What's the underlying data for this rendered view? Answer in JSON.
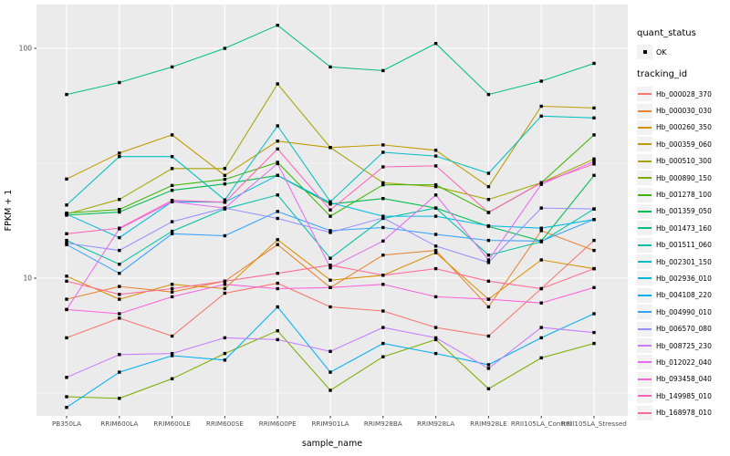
{
  "axes": {
    "x_title": "sample_name",
    "y_title": "FPKM + 1",
    "y_tick_labels": [
      "100",
      "10"
    ]
  },
  "legend": {
    "quant_status_title": "quant_status",
    "quant_status_items": [
      {
        "label": "OK",
        "symbol": "black-square-point"
      }
    ],
    "tracking_id_title": "tracking_id"
  },
  "colors": {
    "panel_background": "#EBEBEB",
    "gridline": "#FFFFFF",
    "axis_text": "#4D4D4D",
    "tick_mark": "#333333",
    "point": "#000000",
    "legend_key_background": "#F2F2F2"
  },
  "chart_data": {
    "type": "line",
    "title": "",
    "xlabel": "sample_name",
    "ylabel": "FPKM + 1",
    "y_scale": "log10",
    "ylim": [
      2.5,
      148
    ],
    "y_major_ticks": [
      10,
      100
    ],
    "y_minor_gridlines": [
      3.162,
      31.62
    ],
    "grid": true,
    "legend_position": "right",
    "point_marker": "filled-black-square",
    "quant_status": "OK",
    "categories": [
      "PB350LA",
      "RRIM600LA",
      "RRIM600LE",
      "RRIM600SE",
      "RRIM600PE",
      "RRIM901LA",
      "RRIM928BA",
      "RRIM928LA",
      "RRIM928LE",
      "RRII105LA_Control",
      "RRII105LA_Stressed"
    ],
    "series": [
      {
        "name": "Hb_000028_370",
        "color": "#F8766D",
        "values": [
          5.5,
          6.7,
          5.6,
          8.6,
          9.5,
          7.5,
          7.2,
          6.1,
          5.6,
          9.0,
          14.6
        ]
      },
      {
        "name": "Hb_000030_030",
        "color": "#EA8331",
        "values": [
          8.1,
          9.2,
          8.7,
          9.7,
          14.0,
          9.1,
          12.6,
          13.2,
          7.5,
          16.1,
          13.2
        ]
      },
      {
        "name": "Hb_000260_350",
        "color": "#D89000",
        "values": [
          10.2,
          8.1,
          9.4,
          9.0,
          14.7,
          9.8,
          10.3,
          12.9,
          8.1,
          12.0,
          11.0
        ]
      },
      {
        "name": "Hb_000359_060",
        "color": "#C09B00",
        "values": [
          27,
          35,
          42,
          28,
          39.5,
          37,
          38,
          36,
          25,
          56,
          55
        ]
      },
      {
        "name": "Hb_000510_300",
        "color": "#A3A500",
        "values": [
          19,
          22,
          30,
          30,
          70,
          37,
          26,
          25,
          22,
          26,
          33
        ]
      },
      {
        "name": "Hb_000890_150",
        "color": "#7CAE00",
        "values": [
          3.05,
          3.0,
          3.65,
          4.7,
          5.9,
          3.25,
          4.55,
          5.4,
          3.3,
          4.5,
          5.2
        ]
      },
      {
        "name": "Hb_001278_100",
        "color": "#39B600",
        "values": [
          19.2,
          19.9,
          25.3,
          26.9,
          31.9,
          18.6,
          25.5,
          25.5,
          19.3,
          26,
          42
        ]
      },
      {
        "name": "Hb_001359_050",
        "color": "#00BB4E",
        "values": [
          18.8,
          19.4,
          24.1,
          25.7,
          28,
          21.0,
          22.2,
          20.2,
          16.8,
          14.5,
          28
        ]
      },
      {
        "name": "Hb_001473_160",
        "color": "#00BF7D",
        "values": [
          63,
          71,
          83,
          100,
          126,
          83,
          80,
          105,
          63,
          72,
          86
        ]
      },
      {
        "name": "Hb_001511_060",
        "color": "#00C1A3",
        "values": [
          14.6,
          11.5,
          16,
          20,
          23,
          12.2,
          18.2,
          20.2,
          12.6,
          14.4,
          20
        ]
      },
      {
        "name": "Hb_002301_150",
        "color": "#00BFC4",
        "values": [
          20.8,
          33.8,
          33.8,
          21.9,
          46,
          21.5,
          35.3,
          34,
          28.6,
          50.7,
          49.8
        ]
      },
      {
        "name": "Hb_002936_010",
        "color": "#00BAE0",
        "values": [
          19.0,
          15,
          21.5,
          21.4,
          28,
          21.3,
          18.6,
          18.6,
          16.9,
          16.5,
          18
        ]
      },
      {
        "name": "Hb_004108_220",
        "color": "#00B0F6",
        "values": [
          2.74,
          3.9,
          4.6,
          4.4,
          7.5,
          3.9,
          5.2,
          4.7,
          4.2,
          5.5,
          7.0
        ]
      },
      {
        "name": "Hb_004990_010",
        "color": "#35A2FF",
        "values": [
          14.0,
          10.5,
          15.6,
          15.3,
          19.5,
          16.1,
          16.6,
          15.5,
          14.6,
          14.5,
          18
        ]
      },
      {
        "name": "Hb_006570_080",
        "color": "#9590FF",
        "values": [
          14.2,
          13.2,
          17.6,
          20.2,
          18.2,
          15.8,
          18.3,
          13.8,
          11.7,
          20.2,
          20
        ]
      },
      {
        "name": "Hb_008725_230",
        "color": "#C77CFF",
        "values": [
          3.7,
          4.65,
          4.7,
          5.5,
          5.4,
          4.8,
          6.1,
          5.5,
          4.05,
          6.1,
          5.8
        ]
      },
      {
        "name": "Hb_012022_040",
        "color": "#E76BF3",
        "values": [
          7.3,
          16.4,
          21.5,
          20.2,
          31.5,
          11.1,
          14.5,
          23,
          12.0,
          25.6,
          32.2
        ]
      },
      {
        "name": "Hb_093458_040",
        "color": "#FA62DB",
        "values": [
          7.3,
          7.0,
          8.3,
          9.4,
          9.0,
          9.1,
          9.4,
          8.3,
          8.1,
          7.8,
          9.1
        ]
      },
      {
        "name": "Hb_149985_010",
        "color": "#FF62BC",
        "values": [
          15.6,
          16.5,
          21.8,
          21.4,
          36.5,
          19.8,
          30.5,
          30.8,
          19.3,
          26,
          31.4
        ]
      },
      {
        "name": "Hb_168978_010",
        "color": "#FF6A98",
        "values": [
          9.7,
          8.5,
          9.0,
          9.7,
          10.5,
          11.4,
          10.3,
          11,
          9.7,
          9.0,
          11.0
        ]
      }
    ]
  }
}
